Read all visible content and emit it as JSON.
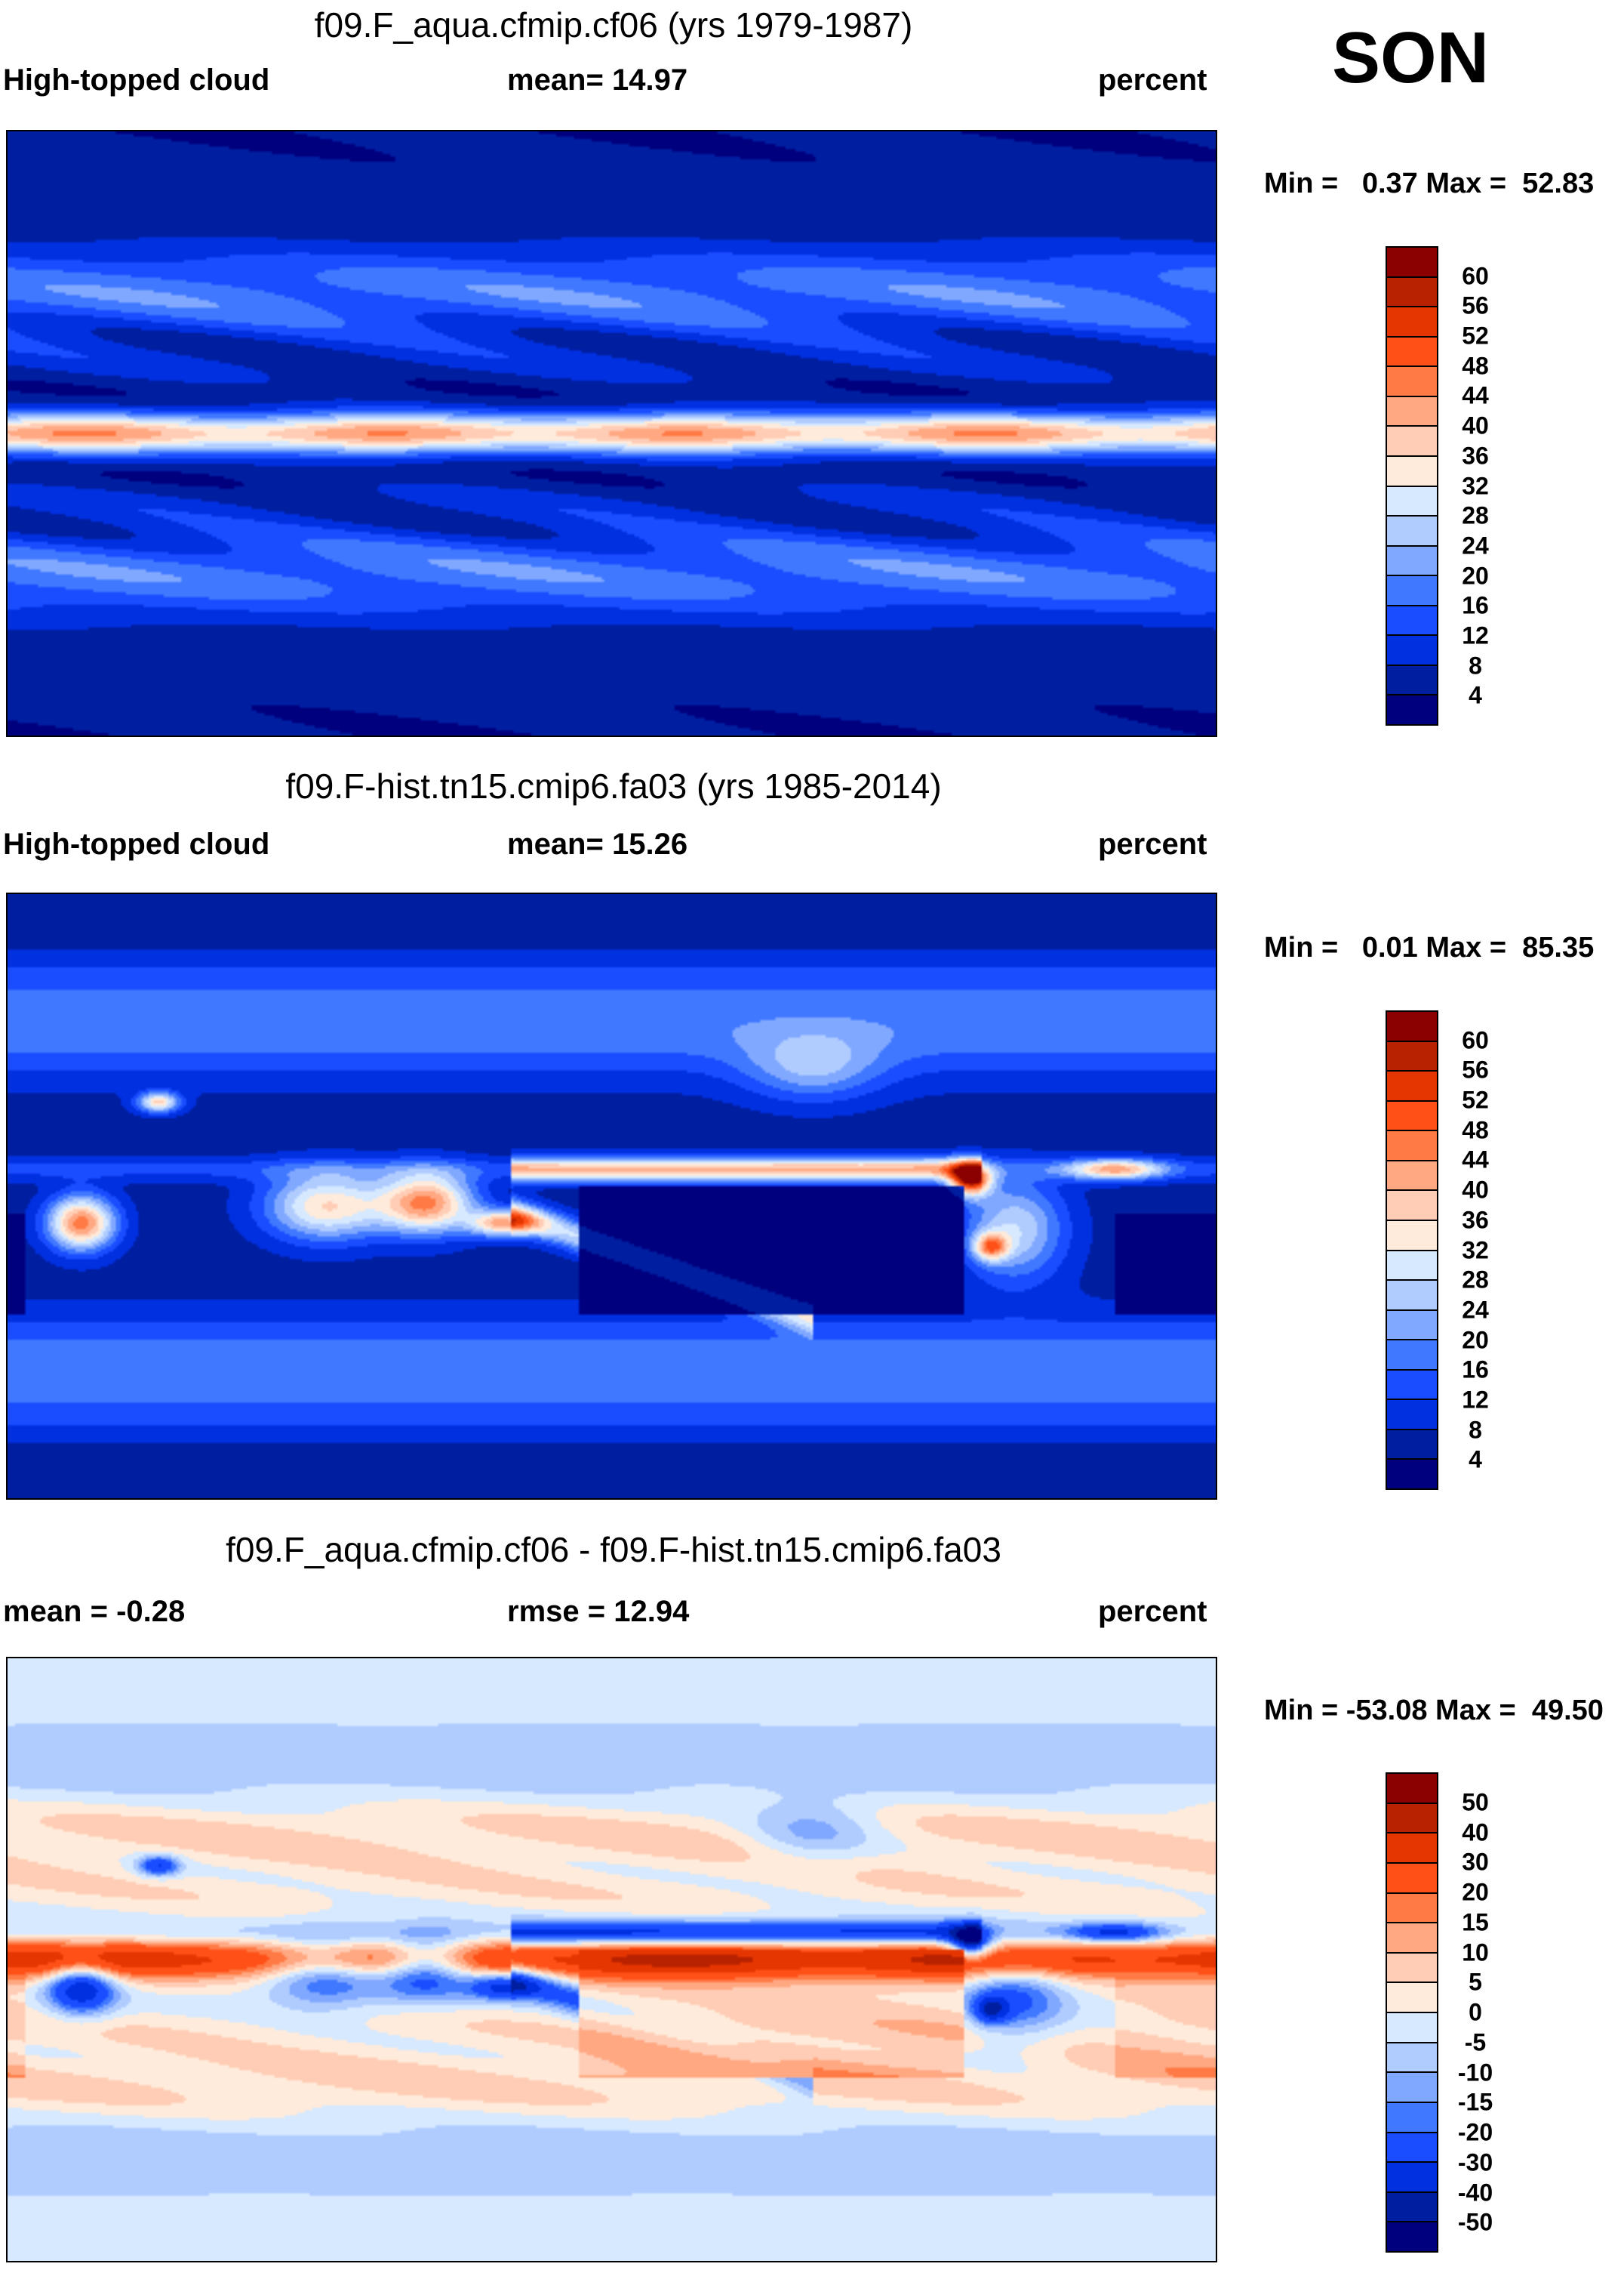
{
  "season": "SON",
  "chart_data": [
    {
      "type": "heatmap",
      "title": "f09.F_aqua.cfmip.cf06 (yrs 1979-1987)",
      "left_label": "High-topped cloud",
      "center_label": "mean=  14.97",
      "right_label": "percent",
      "minmax": "Min =   0.37 Max =  52.83",
      "mean": 14.97,
      "min": 0.37,
      "max": 52.83,
      "levels": [
        "4",
        "8",
        "12",
        "16",
        "20",
        "24",
        "28",
        "32",
        "36",
        "40",
        "44",
        "48",
        "52",
        "56",
        "60"
      ],
      "xlim": [
        0,
        360
      ],
      "ylim": [
        -90,
        90
      ]
    },
    {
      "type": "heatmap",
      "title": "f09.F-hist.tn15.cmip6.fa03 (yrs 1985-2014)",
      "left_label": "High-topped cloud",
      "center_label": "mean=  15.26",
      "right_label": "percent",
      "minmax": "Min =   0.01 Max =  85.35",
      "mean": 15.26,
      "min": 0.01,
      "max": 85.35,
      "levels": [
        "4",
        "8",
        "12",
        "16",
        "20",
        "24",
        "28",
        "32",
        "36",
        "40",
        "44",
        "48",
        "52",
        "56",
        "60"
      ],
      "xlim": [
        0,
        360
      ],
      "ylim": [
        -90,
        90
      ]
    },
    {
      "type": "heatmap",
      "title": "f09.F_aqua.cfmip.cf06 - f09.F-hist.tn15.cmip6.fa03",
      "left_label": "mean =  -0.28",
      "center_label": "rmse =  12.94",
      "right_label": "percent",
      "minmax": "Min = -53.08 Max =  49.50",
      "mean": -0.28,
      "rmse": 12.94,
      "min": -53.08,
      "max": 49.5,
      "levels": [
        "-50",
        "-40",
        "-30",
        "-20",
        "-15",
        "-10",
        "-5",
        "0",
        "5",
        "10",
        "15",
        "20",
        "30",
        "40",
        "50"
      ],
      "xlim": [
        0,
        360
      ],
      "ylim": [
        -90,
        90
      ]
    }
  ],
  "colors": [
    "#00007f",
    "#001ea0",
    "#0030e0",
    "#1a4dff",
    "#4078ff",
    "#80a8ff",
    "#b0ccff",
    "#d6e9ff",
    "#ffebdb",
    "#ffcdb5",
    "#ffa882",
    "#ff7a45",
    "#ff5018",
    "#e53500",
    "#b82200",
    "#8b0000"
  ]
}
